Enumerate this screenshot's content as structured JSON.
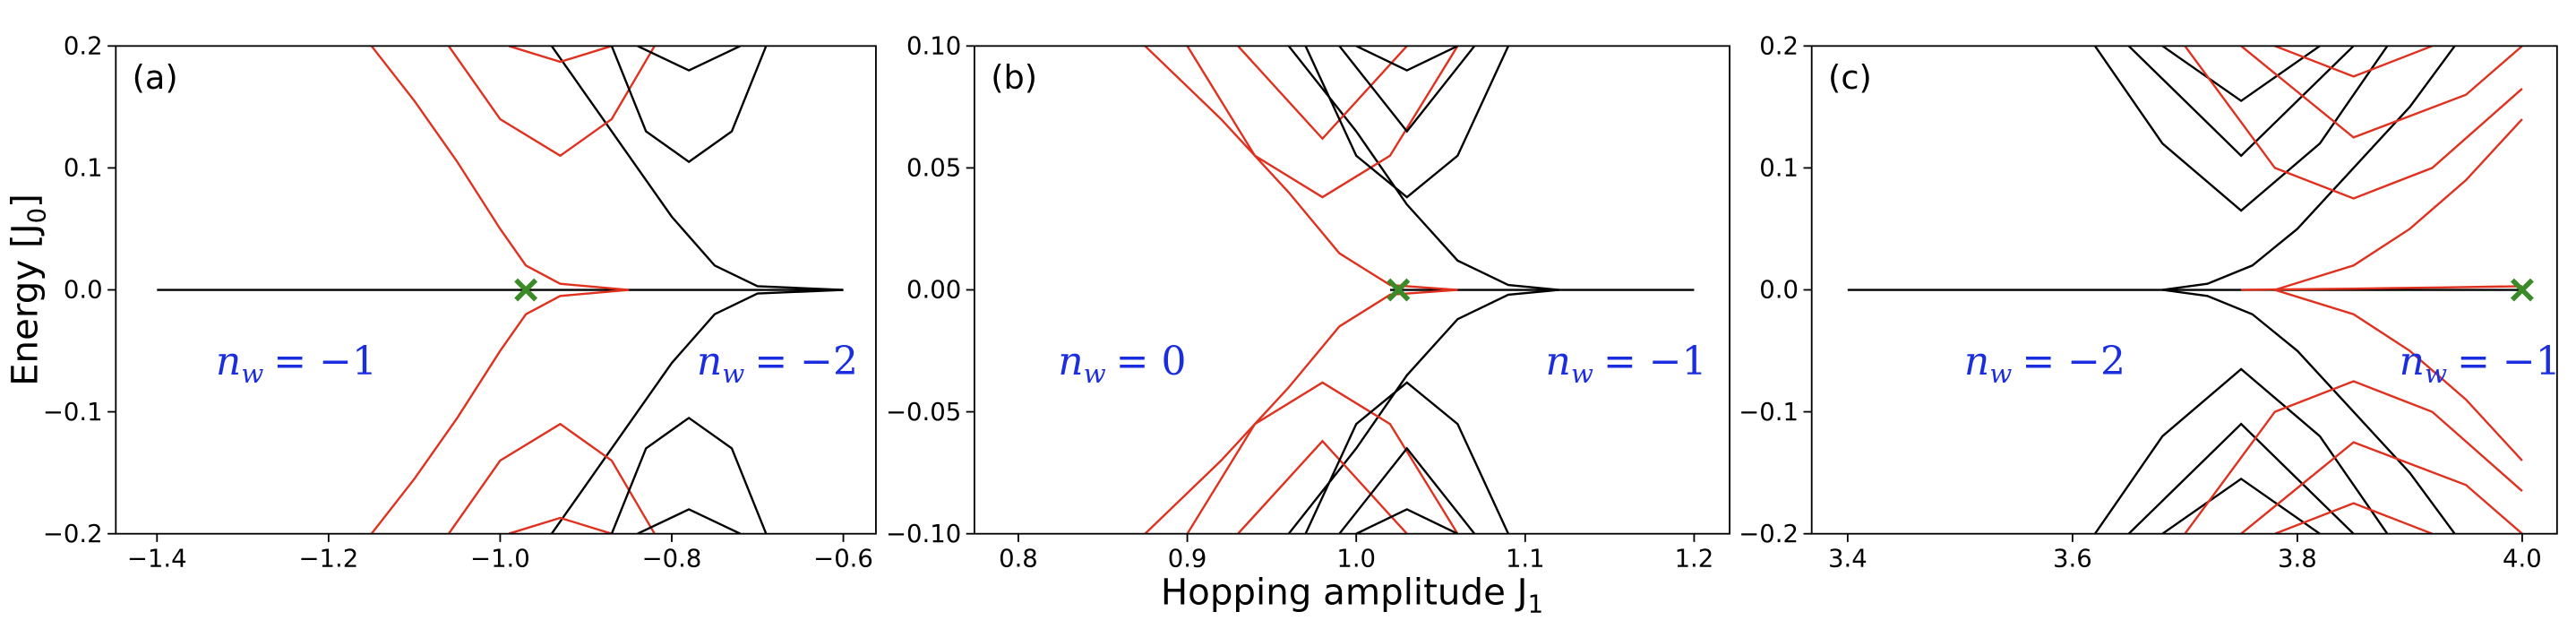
{
  "chart_data": [
    {
      "type": "line",
      "label": "(a)",
      "ylabel": {
        "main": "Energy [J",
        "sub": "0",
        "end": "]"
      },
      "xlim": [
        -1.448,
        -0.562
      ],
      "ylim": [
        -0.2,
        0.2
      ],
      "xticks": [
        {
          "value": -1.4,
          "label": "−1.4"
        },
        {
          "value": -1.2,
          "label": "−1.2"
        },
        {
          "value": -1.0,
          "label": "−1.0"
        },
        {
          "value": -0.8,
          "label": "−0.8"
        },
        {
          "value": -0.6,
          "label": "−0.6"
        }
      ],
      "yticks": [
        {
          "value": -0.2,
          "label": "−0.2"
        },
        {
          "value": -0.1,
          "label": "−0.1"
        },
        {
          "value": 0.0,
          "label": "0.0"
        },
        {
          "value": 0.1,
          "label": "0.1"
        },
        {
          "value": 0.2,
          "label": "0.2"
        }
      ],
      "marker": {
        "x": -0.97,
        "y": 0,
        "color": "#3a8a28"
      },
      "annotations": [
        {
          "symbol": "n",
          "sub": "w",
          "text": "= −1",
          "color": "#1a2ee0"
        },
        {
          "symbol": "n",
          "sub": "w",
          "text": "= −2",
          "color": "#1a2ee0"
        }
      ],
      "series": [
        {
          "color": "#000000",
          "x": [
            -1.4,
            -0.6
          ],
          "values": [
            0,
            0
          ]
        },
        {
          "color": "#e0301e",
          "x": [
            -1.15,
            -1.1,
            -1.05,
            -1.0,
            -0.97,
            -0.93,
            -0.85
          ],
          "values": [
            0.2,
            0.155,
            0.105,
            0.05,
            0.02,
            0.005,
            0
          ]
        },
        {
          "color": "#e0301e",
          "x": [
            -1.15,
            -1.1,
            -1.05,
            -1.0,
            -0.97,
            -0.93,
            -0.85
          ],
          "values": [
            -0.2,
            -0.155,
            -0.105,
            -0.05,
            -0.02,
            -0.005,
            0
          ]
        },
        {
          "color": "#000000",
          "x": [
            -0.94,
            -0.9,
            -0.85,
            -0.8,
            -0.75,
            -0.7,
            -0.6
          ],
          "values": [
            0.2,
            0.16,
            0.11,
            0.06,
            0.02,
            0.003,
            0
          ]
        },
        {
          "color": "#000000",
          "x": [
            -0.94,
            -0.9,
            -0.85,
            -0.8,
            -0.75,
            -0.7,
            -0.6
          ],
          "values": [
            -0.2,
            -0.16,
            -0.11,
            -0.06,
            -0.02,
            -0.003,
            0
          ]
        },
        {
          "color": "#e0301e",
          "x": [
            -1.06,
            -1.0,
            -0.93,
            -0.87,
            -0.82
          ],
          "values": [
            0.2,
            0.14,
            0.11,
            0.14,
            0.2
          ]
        },
        {
          "color": "#e0301e",
          "x": [
            -1.06,
            -1.0,
            -0.93,
            -0.87,
            -0.82
          ],
          "values": [
            -0.2,
            -0.14,
            -0.11,
            -0.14,
            -0.2
          ]
        },
        {
          "color": "#e0301e",
          "x": [
            -0.99,
            -0.93,
            -0.87
          ],
          "values": [
            0.2,
            0.187,
            0.2
          ]
        },
        {
          "color": "#e0301e",
          "x": [
            -0.99,
            -0.93,
            -0.87
          ],
          "values": [
            -0.2,
            -0.187,
            -0.2
          ]
        },
        {
          "color": "#000000",
          "x": [
            -0.87,
            -0.83,
            -0.78,
            -0.73,
            -0.69
          ],
          "values": [
            0.2,
            0.13,
            0.105,
            0.13,
            0.2
          ]
        },
        {
          "color": "#000000",
          "x": [
            -0.87,
            -0.83,
            -0.78,
            -0.73,
            -0.69
          ],
          "values": [
            -0.2,
            -0.13,
            -0.105,
            -0.13,
            -0.2
          ]
        },
        {
          "color": "#000000",
          "x": [
            -0.84,
            -0.78,
            -0.72
          ],
          "values": [
            0.2,
            0.18,
            0.2
          ]
        },
        {
          "color": "#000000",
          "x": [
            -0.84,
            -0.78,
            -0.72
          ],
          "values": [
            -0.2,
            -0.18,
            -0.2
          ]
        }
      ]
    },
    {
      "type": "line",
      "label": "(b)",
      "xlabel": {
        "main": "Hopping amplitude J",
        "sub": "1"
      },
      "xlim": [
        0.774,
        1.221
      ],
      "ylim": [
        -0.1,
        0.1
      ],
      "xticks": [
        0.8,
        0.9,
        {
          "value": 1.0,
          "label": "1.0"
        },
        1.1,
        1.2
      ],
      "yticks": [
        {
          "value": -0.1,
          "label": "−0.10"
        },
        {
          "value": -0.05,
          "label": "−0.05"
        },
        {
          "value": 0.0,
          "label": "0.00"
        },
        {
          "value": 0.05,
          "label": "0.05"
        },
        {
          "value": 0.1,
          "label": "0.10"
        }
      ],
      "marker": {
        "x": 1.025,
        "y": 0,
        "color": "#3a8a28"
      },
      "annotations": [
        {
          "symbol": "n",
          "sub": "w",
          "text": "= 0",
          "color": "#1a2ee0"
        },
        {
          "symbol": "n",
          "sub": "w",
          "text": "= −1",
          "color": "#1a2ee0"
        }
      ],
      "series": [
        {
          "color": "#000000",
          "x": [
            1.02,
            1.2
          ],
          "values": [
            0,
            0
          ]
        },
        {
          "color": "#e0301e",
          "x": [
            0.875,
            0.92,
            0.96,
            0.99,
            1.02,
            1.06
          ],
          "values": [
            0.1,
            0.07,
            0.04,
            0.015,
            0.002,
            0
          ]
        },
        {
          "color": "#e0301e",
          "x": [
            0.875,
            0.92,
            0.96,
            0.99,
            1.02,
            1.06
          ],
          "values": [
            -0.1,
            -0.07,
            -0.04,
            -0.015,
            -0.002,
            0
          ]
        },
        {
          "color": "#000000",
          "x": [
            0.96,
            1.0,
            1.03,
            1.06,
            1.09,
            1.12
          ],
          "values": [
            0.1,
            0.065,
            0.035,
            0.012,
            0.002,
            0
          ]
        },
        {
          "color": "#000000",
          "x": [
            0.96,
            1.0,
            1.03,
            1.06,
            1.09,
            1.12
          ],
          "values": [
            -0.1,
            -0.065,
            -0.035,
            -0.012,
            -0.002,
            0
          ]
        },
        {
          "color": "#e0301e",
          "x": [
            0.9,
            0.94,
            0.98,
            1.02,
            1.06
          ],
          "values": [
            0.1,
            0.055,
            0.038,
            0.055,
            0.1
          ]
        },
        {
          "color": "#e0301e",
          "x": [
            0.9,
            0.94,
            0.98,
            1.02,
            1.06
          ],
          "values": [
            -0.1,
            -0.055,
            -0.038,
            -0.055,
            -0.1
          ]
        },
        {
          "color": "#e0301e",
          "x": [
            0.93,
            0.98,
            1.03
          ],
          "values": [
            0.1,
            0.062,
            0.1
          ]
        },
        {
          "color": "#e0301e",
          "x": [
            0.93,
            0.98,
            1.03
          ],
          "values": [
            -0.1,
            -0.062,
            -0.1
          ]
        },
        {
          "color": "#000000",
          "x": [
            0.97,
            1.0,
            1.03,
            1.06,
            1.09
          ],
          "values": [
            0.1,
            0.055,
            0.038,
            0.055,
            0.1
          ]
        },
        {
          "color": "#000000",
          "x": [
            0.97,
            1.0,
            1.03,
            1.06,
            1.09
          ],
          "values": [
            -0.1,
            -0.055,
            -0.038,
            -0.055,
            -0.1
          ]
        },
        {
          "color": "#000000",
          "x": [
            0.99,
            1.03,
            1.07
          ],
          "values": [
            0.1,
            0.065,
            0.1
          ]
        },
        {
          "color": "#000000",
          "x": [
            0.99,
            1.03,
            1.07
          ],
          "values": [
            -0.1,
            -0.065,
            -0.1
          ]
        },
        {
          "color": "#000000",
          "x": [
            1.0,
            1.03,
            1.06
          ],
          "values": [
            0.1,
            0.09,
            0.1
          ]
        },
        {
          "color": "#000000",
          "x": [
            1.0,
            1.03,
            1.06
          ],
          "values": [
            -0.1,
            -0.09,
            -0.1
          ]
        }
      ]
    },
    {
      "type": "line",
      "label": "(c)",
      "xlim": [
        3.368,
        4.031
      ],
      "ylim": [
        -0.2,
        0.2
      ],
      "xticks": [
        3.4,
        3.6,
        3.8,
        {
          "value": 4.0,
          "label": "4.0"
        }
      ],
      "yticks": [
        {
          "value": -0.2,
          "label": "−0.2"
        },
        {
          "value": -0.1,
          "label": "−0.1"
        },
        {
          "value": 0.0,
          "label": "0.0"
        },
        {
          "value": 0.1,
          "label": "0.1"
        },
        {
          "value": 0.2,
          "label": "0.2"
        }
      ],
      "marker": {
        "x": 4.0,
        "y": 0,
        "color": "#3a8a28"
      },
      "annotations": [
        {
          "symbol": "n",
          "sub": "w",
          "text": "= −2",
          "color": "#1a2ee0"
        },
        {
          "symbol": "n",
          "sub": "w",
          "text": "= −1",
          "color": "#1a2ee0"
        }
      ],
      "series": [
        {
          "color": "#000000",
          "x": [
            3.4,
            4.0
          ],
          "values": [
            0,
            0
          ]
        },
        {
          "color": "#000000",
          "x": [
            3.68,
            3.72,
            3.76,
            3.8,
            3.85,
            3.9,
            3.94
          ],
          "values": [
            0,
            0.005,
            0.02,
            0.05,
            0.1,
            0.15,
            0.2
          ]
        },
        {
          "color": "#000000",
          "x": [
            3.68,
            3.72,
            3.76,
            3.8,
            3.85,
            3.9,
            3.94
          ],
          "values": [
            0,
            -0.005,
            -0.02,
            -0.05,
            -0.1,
            -0.15,
            -0.2
          ]
        },
        {
          "color": "#e0301e",
          "x": [
            3.75,
            3.85,
            3.93,
            4.0
          ],
          "values": [
            0,
            0.001,
            0.002,
            0.003
          ]
        },
        {
          "color": "#e0301e",
          "x": [
            3.78,
            3.85,
            3.9,
            3.95,
            4.0
          ],
          "values": [
            0,
            0.02,
            0.05,
            0.09,
            0.14
          ]
        },
        {
          "color": "#e0301e",
          "x": [
            3.78,
            3.85,
            3.9,
            3.95,
            4.0
          ],
          "values": [
            0,
            -0.02,
            -0.05,
            -0.09,
            -0.14
          ]
        },
        {
          "color": "#000000",
          "x": [
            3.62,
            3.68,
            3.75,
            3.82,
            3.88
          ],
          "values": [
            0.2,
            0.12,
            0.065,
            0.12,
            0.2
          ]
        },
        {
          "color": "#000000",
          "x": [
            3.62,
            3.68,
            3.75,
            3.82,
            3.88
          ],
          "values": [
            -0.2,
            -0.12,
            -0.065,
            -0.12,
            -0.2
          ]
        },
        {
          "color": "#000000",
          "x": [
            3.65,
            3.75,
            3.85
          ],
          "values": [
            0.2,
            0.11,
            0.2
          ]
        },
        {
          "color": "#000000",
          "x": [
            3.65,
            3.75,
            3.85
          ],
          "values": [
            -0.2,
            -0.11,
            -0.2
          ]
        },
        {
          "color": "#000000",
          "x": [
            3.68,
            3.75,
            3.82
          ],
          "values": [
            0.2,
            0.155,
            0.2
          ]
        },
        {
          "color": "#000000",
          "x": [
            3.68,
            3.75,
            3.82
          ],
          "values": [
            -0.2,
            -0.155,
            -0.2
          ]
        },
        {
          "color": "#e0301e",
          "x": [
            3.7,
            3.78,
            3.85,
            3.92,
            4.0
          ],
          "values": [
            0.2,
            0.1,
            0.075,
            0.1,
            0.165
          ]
        },
        {
          "color": "#e0301e",
          "x": [
            3.7,
            3.78,
            3.85,
            3.92,
            4.0
          ],
          "values": [
            -0.2,
            -0.1,
            -0.075,
            -0.1,
            -0.165
          ]
        },
        {
          "color": "#e0301e",
          "x": [
            3.75,
            3.85,
            3.95,
            4.0
          ],
          "values": [
            0.2,
            0.125,
            0.16,
            0.2
          ]
        },
        {
          "color": "#e0301e",
          "x": [
            3.75,
            3.85,
            3.95,
            4.0
          ],
          "values": [
            -0.2,
            -0.125,
            -0.16,
            -0.2
          ]
        },
        {
          "color": "#e0301e",
          "x": [
            3.78,
            3.85,
            3.92
          ],
          "values": [
            0.2,
            0.175,
            0.2
          ]
        },
        {
          "color": "#e0301e",
          "x": [
            3.78,
            3.85,
            3.92
          ],
          "values": [
            -0.2,
            -0.175,
            -0.2
          ]
        }
      ]
    }
  ]
}
